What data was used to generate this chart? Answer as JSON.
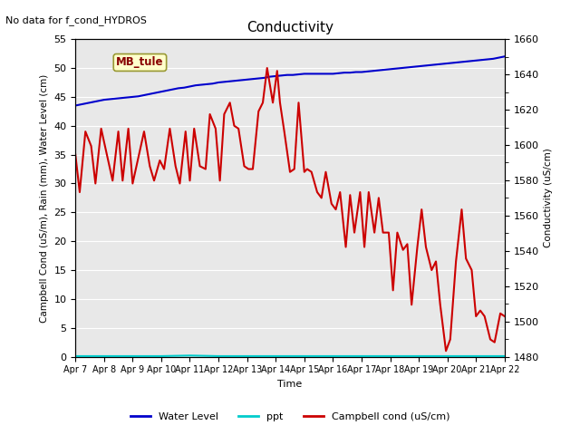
{
  "title": "Conductivity",
  "no_data_text": "No data for f_cond_HYDROS",
  "xlabel": "Time",
  "ylabel_left": "Campbell Cond (uS/m), Rain (mm), Water Level (cm)",
  "ylabel_right": "Conductivity (uS/cm)",
  "xlim": [
    0,
    15
  ],
  "ylim_left": [
    0,
    55
  ],
  "ylim_right": [
    1480,
    1660
  ],
  "xtick_labels": [
    "Apr 7",
    "Apr 8",
    "Apr 9",
    "Apr 10",
    "Apr 11",
    "Apr 12",
    "Apr 13",
    "Apr 14",
    "Apr 15",
    "Apr 16",
    "Apr 17",
    "Apr 18",
    "Apr 19",
    "Apr 20",
    "Apr 21",
    "Apr 22"
  ],
  "yticks_left": [
    0,
    5,
    10,
    15,
    20,
    25,
    30,
    35,
    40,
    45,
    50,
    55
  ],
  "yticks_right": [
    1480,
    1500,
    1520,
    1540,
    1560,
    1580,
    1600,
    1620,
    1640,
    1660
  ],
  "bg_color": "#e8e8e8",
  "water_level_color": "#0000cc",
  "ppt_color": "#00cccc",
  "campbell_color": "#cc0000",
  "legend_label_wl": "Water Level",
  "legend_label_ppt": "ppt",
  "legend_label_campbell": "Campbell cond (uS/cm)",
  "mb_tule_box_color": "#ffffcc",
  "mb_tule_text_color": "#880000",
  "water_level_x": [
    0.0,
    0.2,
    0.4,
    0.6,
    0.8,
    1.0,
    1.2,
    1.4,
    1.6,
    1.8,
    2.0,
    2.2,
    2.4,
    2.6,
    2.8,
    3.0,
    3.2,
    3.4,
    3.6,
    3.8,
    4.0,
    4.2,
    4.4,
    4.6,
    4.8,
    5.0,
    5.2,
    5.4,
    5.6,
    5.8,
    6.0,
    6.2,
    6.4,
    6.6,
    6.8,
    7.0,
    7.2,
    7.4,
    7.6,
    7.8,
    8.0,
    8.2,
    8.4,
    8.6,
    8.8,
    9.0,
    9.2,
    9.4,
    9.6,
    9.8,
    10.0,
    10.2,
    10.4,
    10.6,
    10.8,
    11.0,
    11.2,
    11.4,
    11.6,
    11.8,
    12.0,
    12.2,
    12.4,
    12.6,
    12.8,
    13.0,
    13.2,
    13.4,
    13.6,
    13.8,
    14.0,
    14.2,
    14.4,
    14.6,
    14.8,
    15.0
  ],
  "water_level_y": [
    43.5,
    43.7,
    43.9,
    44.1,
    44.3,
    44.5,
    44.6,
    44.7,
    44.8,
    44.9,
    45.0,
    45.1,
    45.3,
    45.5,
    45.7,
    45.9,
    46.1,
    46.3,
    46.5,
    46.6,
    46.8,
    47.0,
    47.1,
    47.2,
    47.3,
    47.5,
    47.6,
    47.7,
    47.8,
    47.9,
    48.0,
    48.1,
    48.2,
    48.3,
    48.5,
    48.6,
    48.7,
    48.8,
    48.8,
    48.9,
    49.0,
    49.0,
    49.0,
    49.0,
    49.0,
    49.0,
    49.1,
    49.2,
    49.2,
    49.3,
    49.3,
    49.4,
    49.5,
    49.6,
    49.7,
    49.8,
    49.9,
    50.0,
    50.1,
    50.2,
    50.3,
    50.4,
    50.5,
    50.6,
    50.7,
    50.8,
    50.9,
    51.0,
    51.1,
    51.2,
    51.3,
    51.4,
    51.5,
    51.6,
    51.8,
    52.0
  ],
  "ppt_x": [
    0,
    1,
    2,
    3,
    4,
    5,
    6,
    7,
    8,
    9,
    10,
    11,
    12,
    13,
    14,
    15
  ],
  "ppt_y": [
    0.1,
    0.1,
    0.1,
    0.1,
    0.2,
    0.1,
    0.1,
    0.1,
    0.1,
    0.1,
    0.1,
    0.1,
    0.1,
    0.1,
    0.1,
    0.1
  ],
  "campbell_x": [
    0.0,
    0.15,
    0.35,
    0.55,
    0.7,
    0.9,
    1.1,
    1.3,
    1.5,
    1.65,
    1.85,
    2.0,
    2.2,
    2.4,
    2.6,
    2.75,
    2.95,
    3.1,
    3.3,
    3.5,
    3.65,
    3.85,
    4.0,
    4.15,
    4.35,
    4.55,
    4.7,
    4.9,
    5.05,
    5.2,
    5.4,
    5.55,
    5.7,
    5.9,
    6.05,
    6.2,
    6.4,
    6.55,
    6.7,
    6.9,
    7.05,
    7.15,
    7.3,
    7.5,
    7.65,
    7.8,
    8.0,
    8.1,
    8.25,
    8.45,
    8.6,
    8.75,
    8.95,
    9.1,
    9.25,
    9.45,
    9.6,
    9.75,
    9.95,
    10.1,
    10.25,
    10.45,
    10.6,
    10.75,
    10.95,
    11.1,
    11.25,
    11.45,
    11.6,
    11.75,
    11.95,
    12.1,
    12.25,
    12.45,
    12.6,
    12.75,
    12.95,
    13.1,
    13.3,
    13.5,
    13.65,
    13.85,
    14.0,
    14.15,
    14.3,
    14.5,
    14.65,
    14.85,
    15.0
  ],
  "campbell_y": [
    35.0,
    28.5,
    39.0,
    36.5,
    30.0,
    39.5,
    35.0,
    30.5,
    39.0,
    30.5,
    39.5,
    30.0,
    34.5,
    39.0,
    33.0,
    30.5,
    34.0,
    32.5,
    39.5,
    33.0,
    30.0,
    39.0,
    30.5,
    39.5,
    33.0,
    32.5,
    42.0,
    39.5,
    30.5,
    42.0,
    44.0,
    40.0,
    39.5,
    33.0,
    32.5,
    32.5,
    42.5,
    44.0,
    50.0,
    44.0,
    49.5,
    44.0,
    39.0,
    32.0,
    32.5,
    44.0,
    32.0,
    32.5,
    32.0,
    28.5,
    27.5,
    32.0,
    26.5,
    25.5,
    28.5,
    19.0,
    28.0,
    21.5,
    28.5,
    19.0,
    28.5,
    21.5,
    27.5,
    21.5,
    21.5,
    11.5,
    21.5,
    18.5,
    19.5,
    9.0,
    19.0,
    25.5,
    19.0,
    15.0,
    16.5,
    9.0,
    1.0,
    3.0,
    16.5,
    25.5,
    17.0,
    15.0,
    7.0,
    8.0,
    7.0,
    3.0,
    2.5,
    7.5,
    7.0
  ]
}
